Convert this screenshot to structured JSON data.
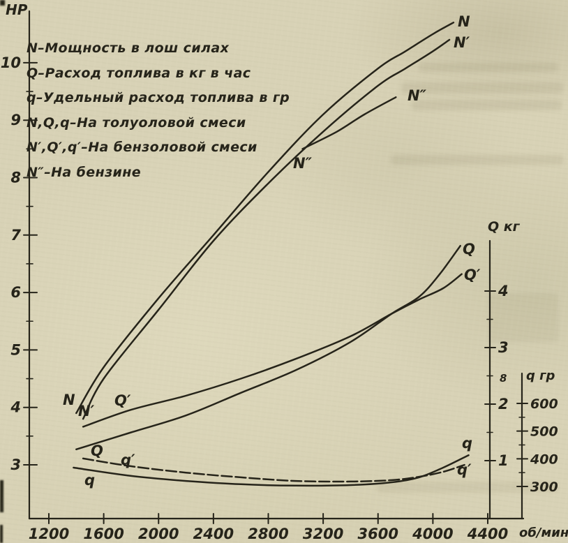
{
  "colors": {
    "paper": "#d8d2b6",
    "ink": "#26241a"
  },
  "figure": {
    "hp_axis_label": "НР",
    "q_kg_axis_label": "Q кг",
    "q_g_axis_label": "q гр",
    "rpm_unit_label": "об/мин",
    "axis_artifact": "8"
  },
  "legend": {
    "lines": [
      "N–Мощность в лош силах",
      "Q–Расход топлива в кг в час",
      "q–Удельный расход топлива в гр",
      "N,Q,q–На толуоловой смеси",
      "N′,Q′,q′–На бензоловой смеси",
      "N″–На бензине"
    ]
  },
  "chart_data": {
    "type": "line",
    "x_axis": {
      "label": "об/мин",
      "ticks": [
        1200,
        1600,
        2000,
        2400,
        2800,
        3200,
        3600,
        4000,
        4400
      ],
      "range": [
        1200,
        4400
      ]
    },
    "y_axes": [
      {
        "id": "hp",
        "label": "НР",
        "side": "left",
        "ticks": [
          3,
          4,
          5,
          6,
          7,
          8,
          9,
          10
        ],
        "range": [
          2.5,
          11
        ]
      },
      {
        "id": "q_kg",
        "label": "Q кг",
        "side": "right",
        "ticks": [
          1,
          2,
          3,
          4
        ],
        "range": [
          0,
          5
        ]
      },
      {
        "id": "q_g",
        "label": "q гр",
        "side": "right",
        "ticks": [
          300,
          400,
          500,
          600
        ],
        "range": [
          250,
          650
        ]
      }
    ],
    "grid": false,
    "legend_position": "top-left",
    "series": [
      {
        "name": "N",
        "axis": "hp",
        "fuel": "толуоловая смесь",
        "desc": "Мощность в лош силах",
        "points": [
          [
            1400,
            3.9
          ],
          [
            1600,
            4.7
          ],
          [
            2000,
            5.9
          ],
          [
            2400,
            7.0
          ],
          [
            2800,
            8.1
          ],
          [
            3200,
            9.1
          ],
          [
            3600,
            9.9
          ],
          [
            3800,
            10.2
          ],
          [
            4000,
            10.5
          ],
          [
            4150,
            10.7
          ]
        ]
      },
      {
        "name": "N′",
        "axis": "hp",
        "fuel": "бензоловая смесь",
        "desc": "Мощность в лош силах",
        "points": [
          [
            1450,
            3.8
          ],
          [
            1600,
            4.5
          ],
          [
            2000,
            5.7
          ],
          [
            2400,
            6.9
          ],
          [
            2800,
            7.9
          ],
          [
            3200,
            8.8
          ],
          [
            3600,
            9.6
          ],
          [
            3800,
            9.9
          ],
          [
            4000,
            10.2
          ],
          [
            4120,
            10.4
          ]
        ]
      },
      {
        "name": "N″",
        "axis": "hp",
        "fuel": "бензин",
        "desc": "Мощность в лош силах",
        "points": [
          [
            3050,
            8.5
          ],
          [
            3300,
            8.8
          ],
          [
            3500,
            9.1
          ],
          [
            3730,
            9.4
          ]
        ]
      },
      {
        "name": "Q",
        "axis": "q_kg",
        "fuel": "толуоловая смесь",
        "desc": "Расход топлива в кг в час",
        "points": [
          [
            1400,
            1.2
          ],
          [
            1800,
            1.5
          ],
          [
            2200,
            1.8
          ],
          [
            2600,
            2.2
          ],
          [
            3000,
            2.6
          ],
          [
            3400,
            3.1
          ],
          [
            3700,
            3.6
          ],
          [
            3900,
            3.9
          ],
          [
            4050,
            4.3
          ],
          [
            4200,
            4.8
          ]
        ]
      },
      {
        "name": "Q′",
        "axis": "q_kg",
        "fuel": "бензоловая смесь",
        "desc": "Расход топлива в кг в час",
        "points": [
          [
            1450,
            1.6
          ],
          [
            1800,
            1.9
          ],
          [
            2200,
            2.15
          ],
          [
            2600,
            2.45
          ],
          [
            3000,
            2.8
          ],
          [
            3400,
            3.2
          ],
          [
            3700,
            3.6
          ],
          [
            3900,
            3.85
          ],
          [
            4075,
            4.05
          ],
          [
            4210,
            4.3
          ]
        ]
      },
      {
        "name": "q",
        "axis": "q_g",
        "fuel": "толуоловая смесь",
        "desc": "Удельный расход топлива в гр",
        "points": [
          [
            1380,
            368
          ],
          [
            1800,
            338
          ],
          [
            2200,
            320
          ],
          [
            2600,
            308
          ],
          [
            3000,
            303
          ],
          [
            3400,
            305
          ],
          [
            3700,
            315
          ],
          [
            3900,
            333
          ],
          [
            4075,
            368
          ],
          [
            4260,
            413
          ]
        ]
      },
      {
        "name": "q′",
        "axis": "q_g",
        "fuel": "бензоловая смесь",
        "desc": "Удельный расход топлива в гр",
        "points": [
          [
            1450,
            401
          ],
          [
            1800,
            373
          ],
          [
            2200,
            350
          ],
          [
            2600,
            333
          ],
          [
            3000,
            320
          ],
          [
            3400,
            318
          ],
          [
            3700,
            323
          ],
          [
            3900,
            335
          ],
          [
            4075,
            353
          ],
          [
            4230,
            378
          ]
        ]
      }
    ]
  }
}
